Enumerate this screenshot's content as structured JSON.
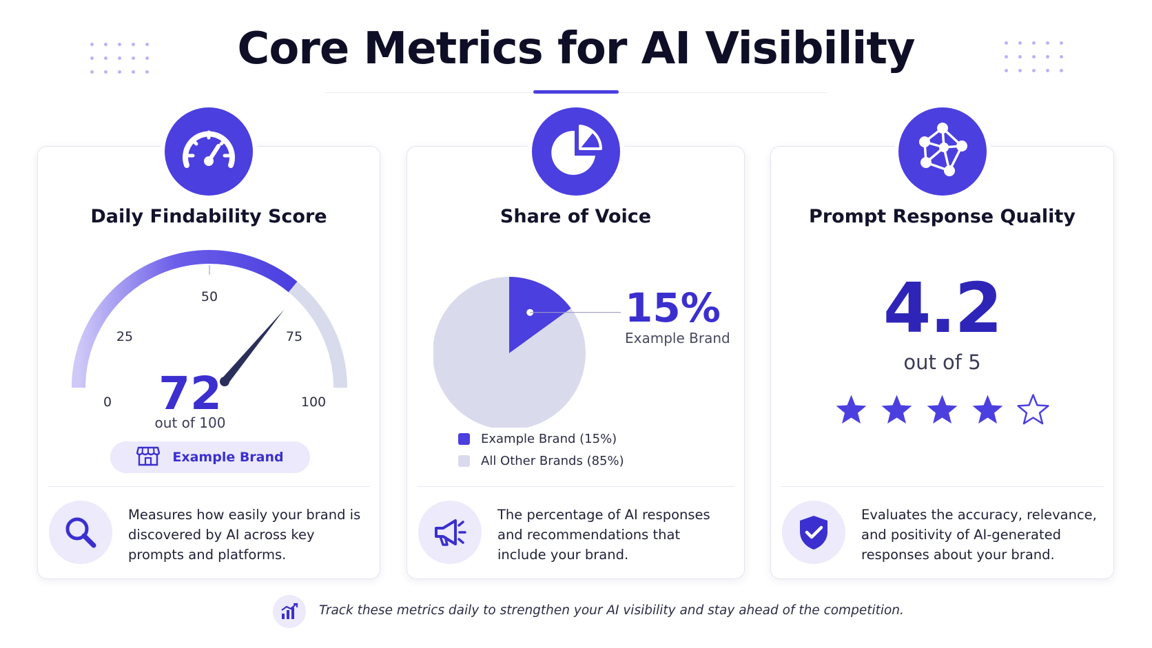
{
  "header": {
    "title": "Core Metrics for AI Visibility"
  },
  "colors": {
    "accent": "#4b3fe0",
    "accent_dark": "#3b2fcf",
    "muted_fill": "#d9dbec",
    "icon_bg": "#eceafb"
  },
  "cards": [
    {
      "title": "Daily Findability Score",
      "icon": "speedometer-icon",
      "gauge": {
        "value": "72",
        "score": 72,
        "max": 100,
        "subtitle": "out of 100",
        "ticks": [
          "0",
          "25",
          "50",
          "75",
          "100"
        ]
      },
      "brand_badge": {
        "icon": "storefront-icon",
        "label": "Example Brand"
      },
      "description_icon": "search-icon",
      "description": "Measures how easily your brand is discovered by AI across key prompts and platforms."
    },
    {
      "title": "Share of Voice",
      "icon": "pie-chart-icon",
      "highlight": {
        "value": "15%",
        "label": "Example Brand"
      },
      "legend": [
        {
          "label": "Example Brand (15%)",
          "color": "#4b3fe0"
        },
        {
          "label": "All Other Brands (85%)",
          "color": "#d9dbec"
        }
      ],
      "description_icon": "megaphone-icon",
      "description": "The percentage of AI responses and recommendations that include your brand."
    },
    {
      "title": "Prompt Response Quality",
      "icon": "network-icon",
      "rating": {
        "value": "4.2",
        "subtitle": "out of 5",
        "filled_stars": 4,
        "total_stars": 5
      },
      "description_icon": "shield-check-icon",
      "description": "Evaluates the accuracy, relevance, and positivity of AI-generated responses about your brand."
    }
  ],
  "chart_data": {
    "type": "pie",
    "categories": [
      "Example Brand",
      "All Other Brands"
    ],
    "values": [
      15,
      85
    ]
  },
  "footer": {
    "icon": "bar-chart-icon",
    "text": "Track these metrics daily to strengthen your AI visibility and stay ahead of the competition."
  }
}
